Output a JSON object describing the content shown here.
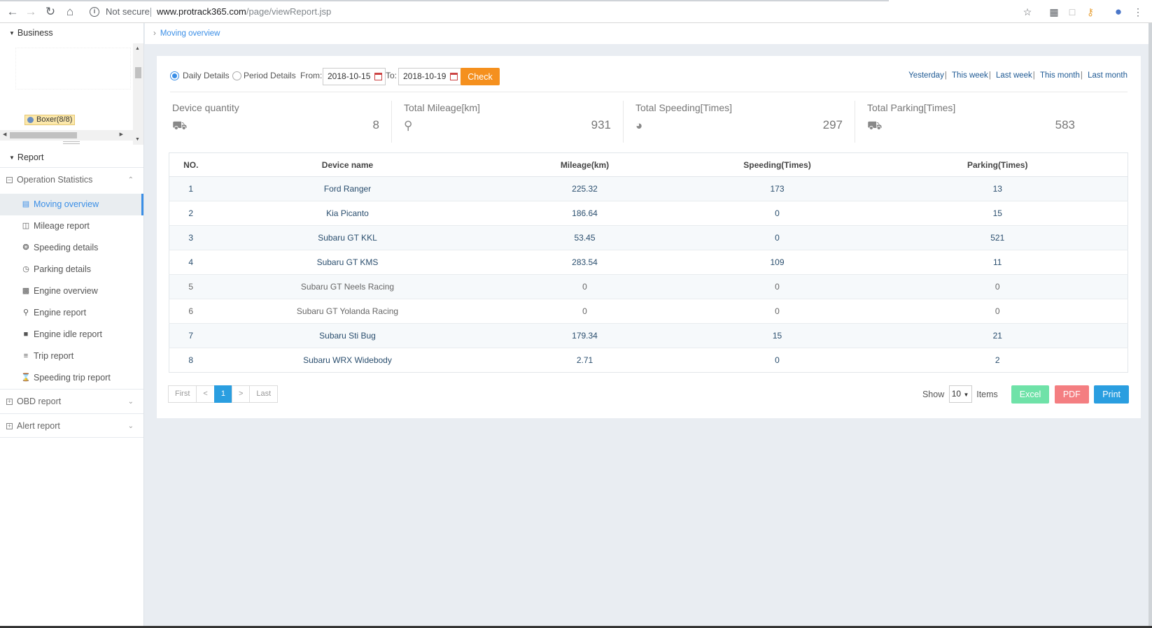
{
  "browser": {
    "security": "Not secure",
    "url_host": "www.protrack365.com",
    "url_path": "/page/viewReport.jsp"
  },
  "breadcrumb": {
    "current": "Moving overview"
  },
  "sidebar": {
    "business_header": "Business",
    "tree_node": "Boxer(8/8)",
    "report_header": "Report",
    "groups": {
      "operation": "Operation Statistics",
      "obd": "OBD report",
      "alert": "Alert report"
    },
    "items": [
      {
        "label": "Moving overview"
      },
      {
        "label": "Mileage report"
      },
      {
        "label": "Speeding details"
      },
      {
        "label": "Parking details"
      },
      {
        "label": "Engine overview"
      },
      {
        "label": "Engine report"
      },
      {
        "label": "Engine idle report"
      },
      {
        "label": "Trip report"
      },
      {
        "label": "Speeding trip report"
      }
    ]
  },
  "filters": {
    "daily": "Daily Details",
    "period": "Period Details",
    "from_label": "From:",
    "from_value": "2018-10-15",
    "to_label": "To:",
    "to_value": "2018-10-19",
    "check": "Check",
    "quick": [
      "Yesterday",
      "This week",
      "Last week",
      "This month",
      "Last month"
    ]
  },
  "stats": {
    "device": {
      "label": "Device quantity",
      "value": "8"
    },
    "mileage": {
      "label": "Total Mileage[km]",
      "value": "931"
    },
    "speeding": {
      "label": "Total Speeding[Times]",
      "value": "297"
    },
    "parking": {
      "label": "Total Parking[Times]",
      "value": "583"
    }
  },
  "table": {
    "headers": [
      "NO.",
      "Device name",
      "Mileage(km)",
      "Speeding(Times)",
      "Parking(Times)"
    ],
    "rows": [
      [
        "1",
        "Ford Ranger",
        "225.32",
        "173",
        "13"
      ],
      [
        "2",
        "Kia Picanto",
        "186.64",
        "0",
        "15"
      ],
      [
        "3",
        "Subaru GT KKL",
        "53.45",
        "0",
        "521"
      ],
      [
        "4",
        "Subaru GT KMS",
        "283.54",
        "109",
        "11"
      ],
      [
        "5",
        "Subaru GT Neels Racing",
        "0",
        "0",
        "0"
      ],
      [
        "6",
        "Subaru GT Yolanda Racing",
        "0",
        "0",
        "0"
      ],
      [
        "7",
        "Subaru Sti Bug",
        "179.34",
        "15",
        "21"
      ],
      [
        "8",
        "Subaru WRX Widebody",
        "2.71",
        "0",
        "2"
      ]
    ]
  },
  "pager": {
    "first": "First",
    "prev": "<",
    "page": "1",
    "next": ">",
    "last": "Last"
  },
  "controls": {
    "show": "Show",
    "page_size": "10",
    "items": "Items",
    "excel": "Excel",
    "pdf": "PDF",
    "print": "Print"
  },
  "colors": {
    "accent": "#3a8ee6",
    "check": "#f5901e",
    "excel": "#6fe2a8",
    "pdf": "#f47e81",
    "print": "#2a9ee0"
  }
}
